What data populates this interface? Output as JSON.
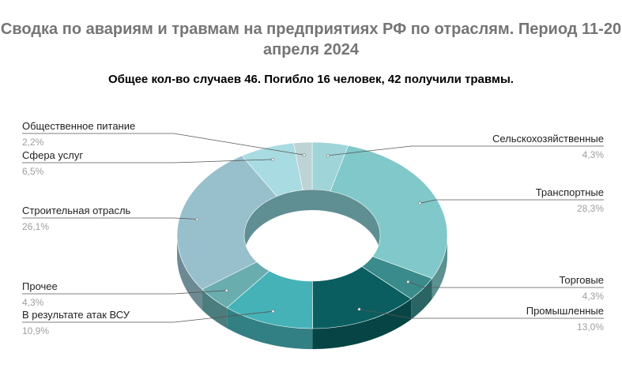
{
  "chart_data": {
    "type": "pie",
    "donut": true,
    "title": "Сводка по авариям и травмам на предприятиях РФ по отраслям. Период 11-20 апреля 2024",
    "subtitle": "Общее кол-во случаев 46. Погибло 16 человек, 42 получили травмы.",
    "slices": [
      {
        "label": "Сельскохозяйственные",
        "value": 4.3,
        "value_label": "4,3%",
        "color": "#9fd4d8"
      },
      {
        "label": "Транспортные",
        "value": 28.3,
        "value_label": "28,3%",
        "color": "#80c8c9"
      },
      {
        "label": "Торговые",
        "value": 4.3,
        "value_label": "4,3%",
        "color": "#3a8b8b"
      },
      {
        "label": "Промышленные",
        "value": 13.0,
        "value_label": "13,0%",
        "color": "#0a5e60"
      },
      {
        "label": "В результате атак ВСУ",
        "value": 10.9,
        "value_label": "10,9%",
        "color": "#45b2b8"
      },
      {
        "label": "Прочее",
        "value": 4.3,
        "value_label": "4,3%",
        "color": "#6aadaf"
      },
      {
        "label": "Строительная отрасль",
        "value": 26.1,
        "value_label": "26,1%",
        "color": "#98bfcc"
      },
      {
        "label": "Сфера услуг",
        "value": 6.5,
        "value_label": "6,5%",
        "color": "#a9dbe2"
      },
      {
        "label": "Общественное питание",
        "value": 2.2,
        "value_label": "2,2%",
        "color": "#bdd3d4"
      }
    ]
  }
}
